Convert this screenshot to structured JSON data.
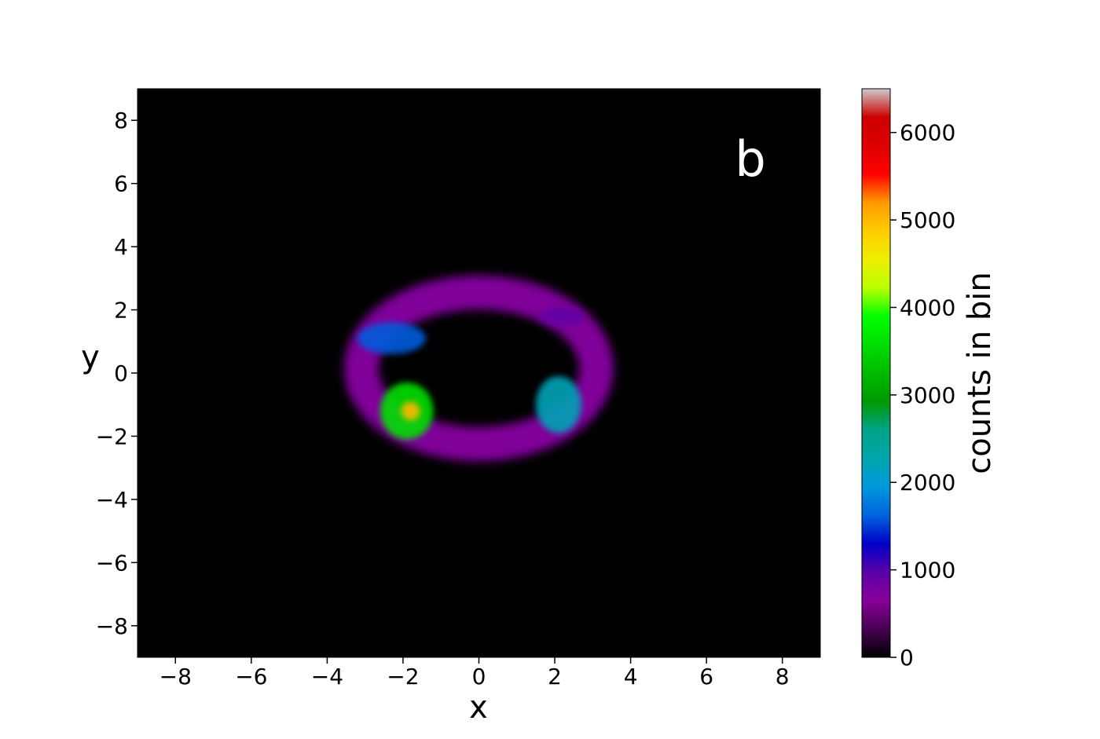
{
  "chart_data": {
    "type": "heatmap",
    "panel_label": "b",
    "xlabel": "x",
    "ylabel": "y",
    "xlim": [
      -9,
      9
    ],
    "ylim": [
      -9,
      9
    ],
    "xticks": [
      -8,
      -6,
      -4,
      -2,
      0,
      2,
      4,
      6,
      8
    ],
    "yticks": [
      -8,
      -6,
      -4,
      -2,
      0,
      2,
      4,
      6,
      8
    ],
    "xtick_labels": [
      "−8",
      "−6",
      "−4",
      "−2",
      "0",
      "2",
      "4",
      "6",
      "8"
    ],
    "ytick_labels": [
      "−8",
      "−6",
      "−4",
      "−2",
      "0",
      "2",
      "4",
      "6",
      "8"
    ],
    "background_color": "#000000",
    "colorbar": {
      "label": "counts in bin",
      "range": [
        0,
        6500
      ],
      "ticks": [
        0,
        1000,
        2000,
        3000,
        4000,
        5000,
        6000
      ],
      "tick_labels": [
        "0",
        "1000",
        "2000",
        "3000",
        "4000",
        "5000",
        "6000"
      ],
      "colormap": "nipy_spectral",
      "stops": [
        {
          "v": 0,
          "color": "#000000"
        },
        {
          "v": 0.05,
          "color": "#470052"
        },
        {
          "v": 0.1,
          "color": "#870098"
        },
        {
          "v": 0.15,
          "color": "#5a00a8"
        },
        {
          "v": 0.2,
          "color": "#0000c8"
        },
        {
          "v": 0.25,
          "color": "#0064dd"
        },
        {
          "v": 0.3,
          "color": "#0099dd"
        },
        {
          "v": 0.35,
          "color": "#00a6aa"
        },
        {
          "v": 0.4,
          "color": "#00a488"
        },
        {
          "v": 0.45,
          "color": "#009900"
        },
        {
          "v": 0.5,
          "color": "#00bb00"
        },
        {
          "v": 0.55,
          "color": "#00dd00"
        },
        {
          "v": 0.6,
          "color": "#00ff00"
        },
        {
          "v": 0.65,
          "color": "#bbff00"
        },
        {
          "v": 0.7,
          "color": "#eeee00"
        },
        {
          "v": 0.75,
          "color": "#ffcc00"
        },
        {
          "v": 0.8,
          "color": "#ff9900"
        },
        {
          "v": 0.85,
          "color": "#ff0000"
        },
        {
          "v": 0.9,
          "color": "#dd0000"
        },
        {
          "v": 0.95,
          "color": "#cc0000"
        },
        {
          "v": 1.0,
          "color": "#cccccc"
        }
      ]
    },
    "density_regions": [
      {
        "cx": 0.0,
        "cy": 0.15,
        "rx": 3.1,
        "ry": 2.4,
        "counts": 700
      },
      {
        "cx": -2.3,
        "cy": 1.1,
        "rx": 0.9,
        "ry": 0.5,
        "counts": 1600
      },
      {
        "cx": -1.9,
        "cy": -1.2,
        "rx": 0.7,
        "ry": 0.9,
        "counts": 3600
      },
      {
        "cx": -1.8,
        "cy": -1.2,
        "rx": 0.25,
        "ry": 0.3,
        "counts": 5000
      },
      {
        "cx": 2.1,
        "cy": -1.0,
        "rx": 0.6,
        "ry": 0.9,
        "counts": 2200
      },
      {
        "cx": 2.2,
        "cy": 1.8,
        "rx": 0.6,
        "ry": 0.3,
        "counts": 900
      }
    ]
  }
}
